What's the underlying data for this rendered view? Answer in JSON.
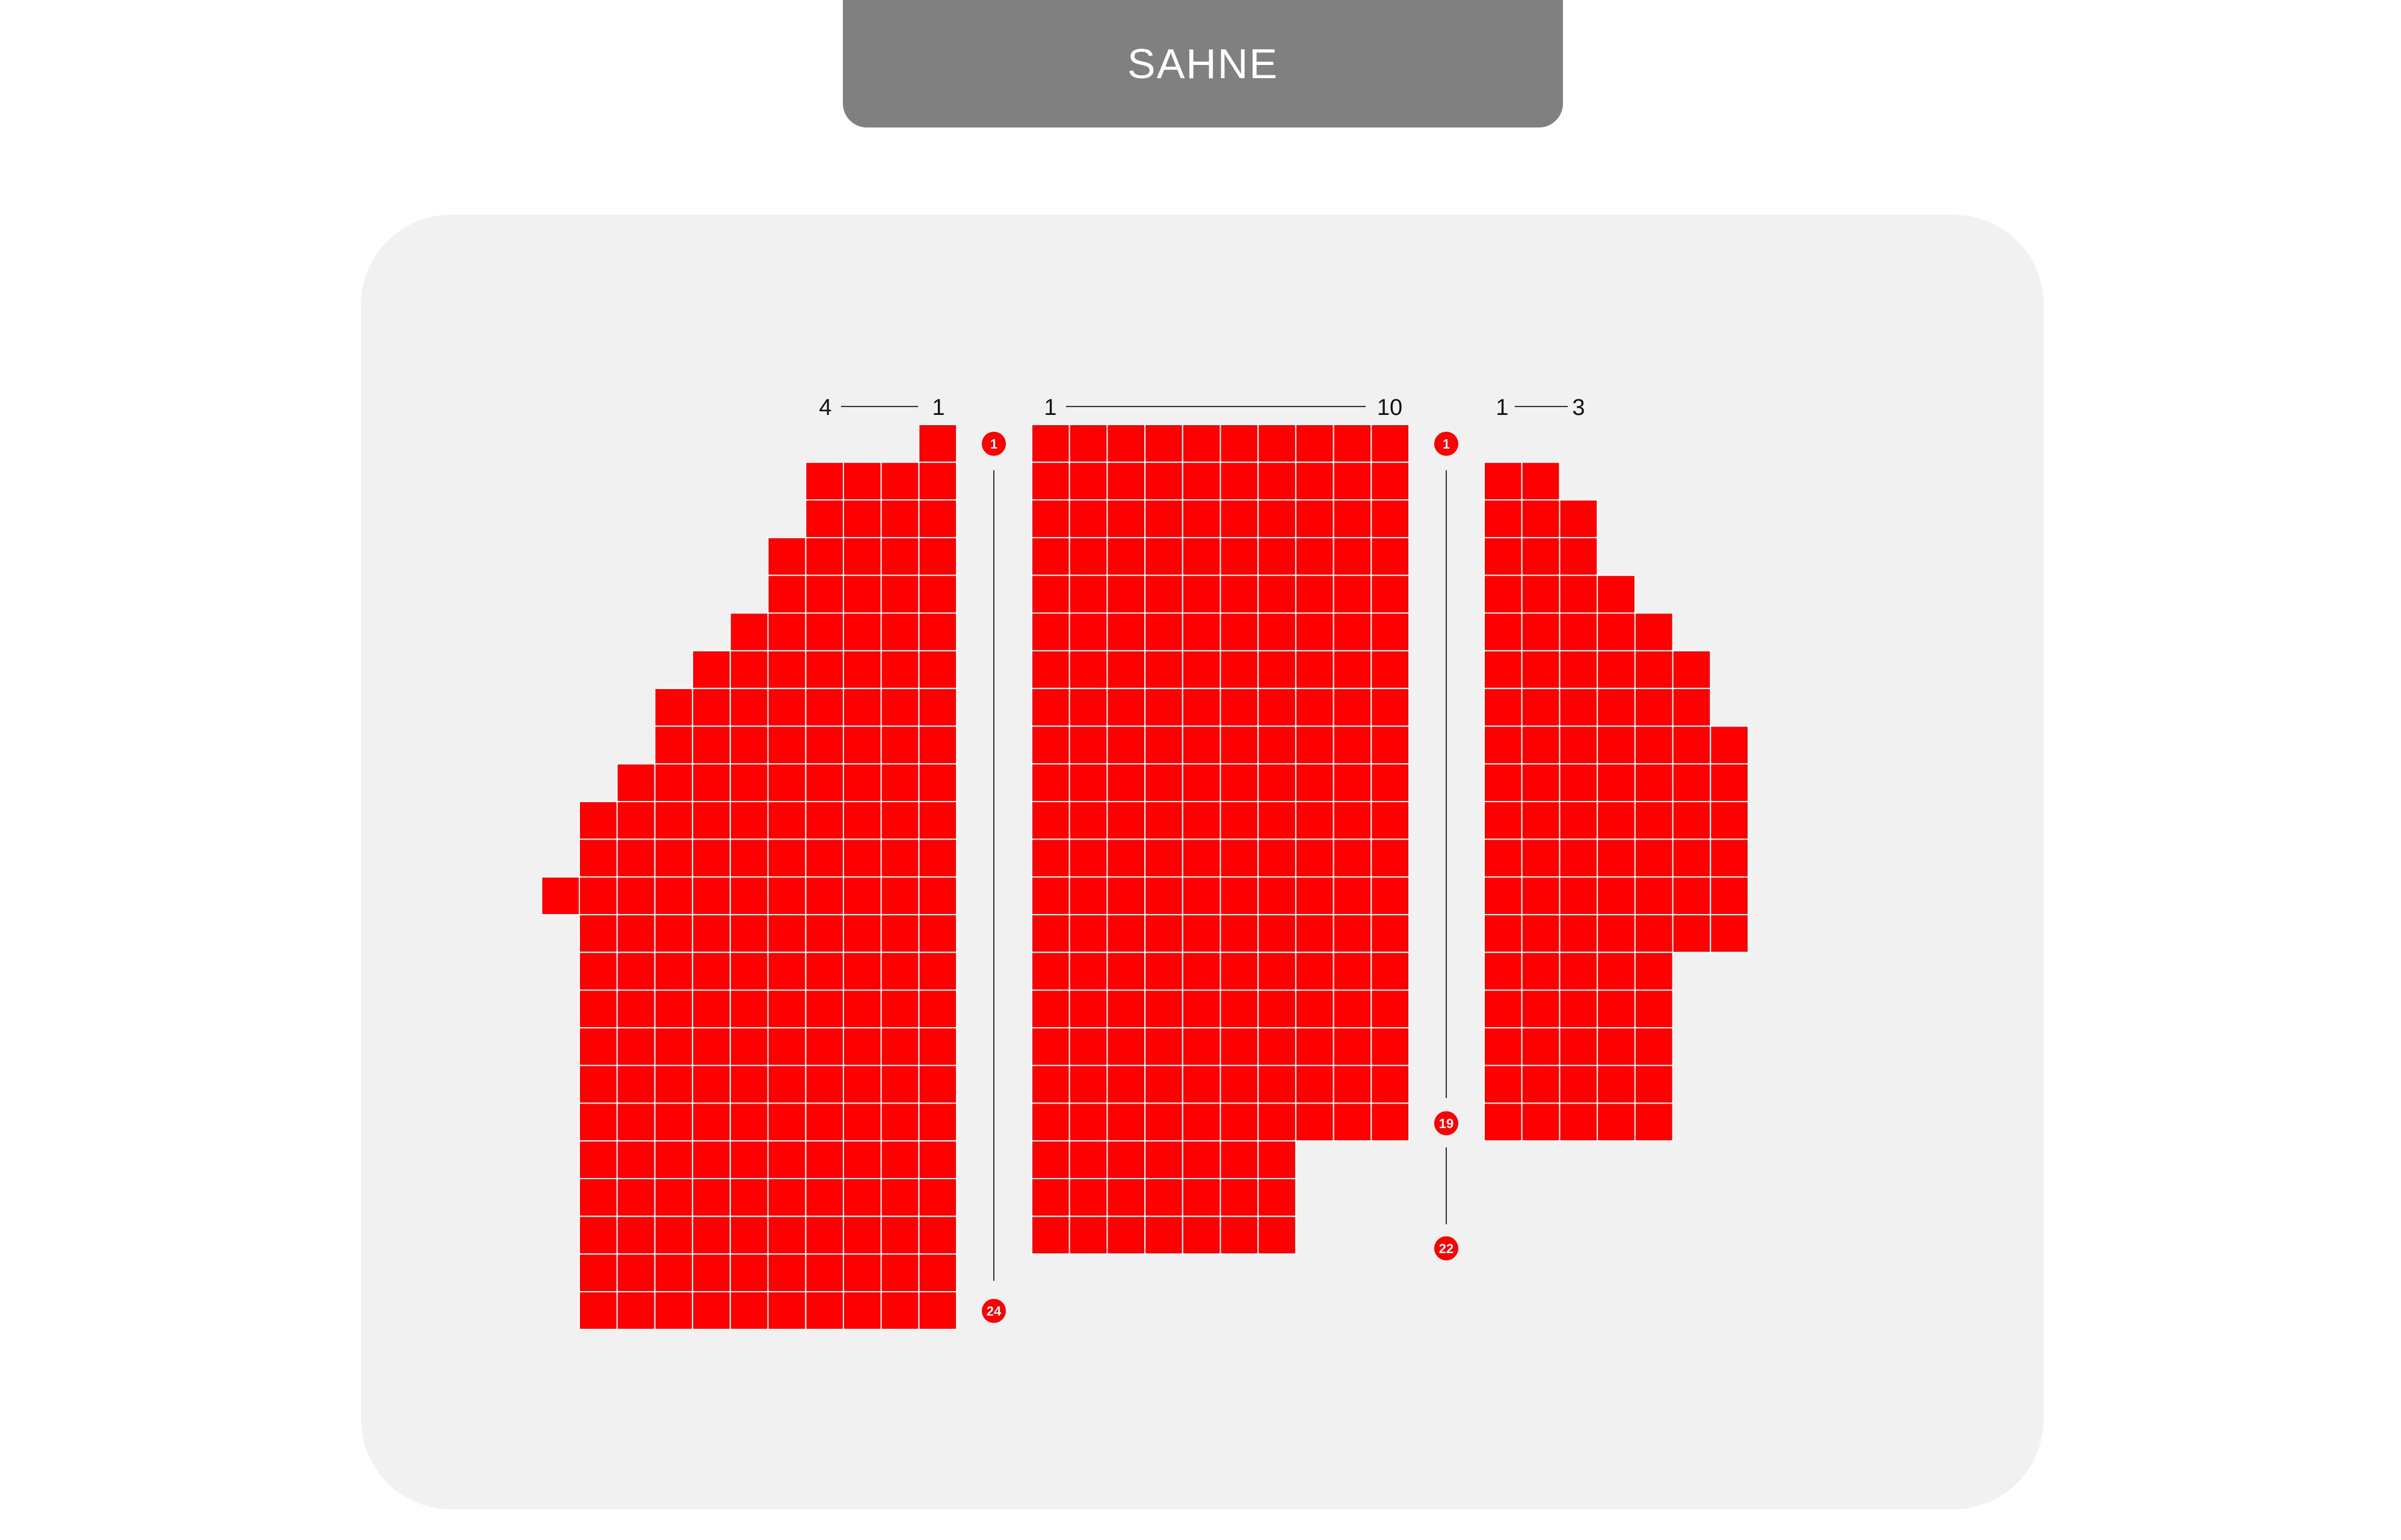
{
  "stage": {
    "label": "SAHNE"
  },
  "colors": {
    "seat": "#ff0000",
    "hall": "#f1f1f1",
    "stage": "#808080",
    "marker": "#ff0000"
  },
  "blocks": [
    {
      "id": "left",
      "seat_labels": {
        "start": "4",
        "end": "1"
      },
      "row_marker_first": "1",
      "row_marker_last": "24",
      "rows": [
        1,
        4,
        4,
        5,
        5,
        6,
        7,
        8,
        8,
        9,
        10,
        10,
        11,
        10,
        10,
        10,
        10,
        10,
        10,
        10,
        10,
        10,
        10,
        10
      ]
    },
    {
      "id": "center",
      "seat_labels": {
        "start": "1",
        "end": "10"
      },
      "row_marker_first": "1",
      "row_marker_mid": "19",
      "row_marker_last": "22",
      "rows": [
        10,
        10,
        10,
        10,
        10,
        10,
        10,
        10,
        10,
        10,
        10,
        10,
        10,
        10,
        10,
        10,
        10,
        10,
        10,
        7,
        7,
        7
      ]
    },
    {
      "id": "right",
      "seat_labels": {
        "start": "1",
        "end": "3"
      },
      "rows": [
        0,
        2,
        3,
        3,
        4,
        5,
        6,
        6,
        7,
        7,
        7,
        7,
        7,
        7,
        5,
        5,
        5,
        5,
        5
      ]
    }
  ]
}
